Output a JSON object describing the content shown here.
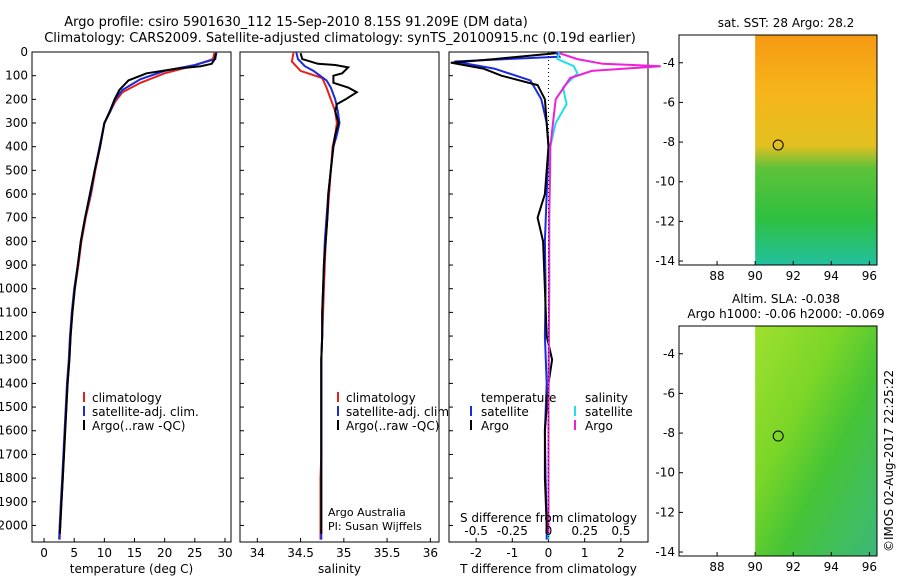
{
  "title": {
    "line1": "Argo profile: csiro 5901630_112 15-Sep-2010 8.15S 91.209E (DM data)",
    "line2": "Climatology: CARS2009. Satellite-adjusted climatology: synTS_20100915.nc (0.19d earlier)"
  },
  "watermark": "©IMOS 02-Aug-2017 22:25:22",
  "colors": {
    "climatology": "#e8201a",
    "satellite": "#1a2bdc",
    "argo": "#000000",
    "sal_satellite": "#1fe0e8",
    "sal_argo": "#ee20d8"
  },
  "chart_data": [
    {
      "type": "line",
      "title": "",
      "xlabel": "temperature (deg C)",
      "ylabel": "",
      "xlim": [
        -2,
        31
      ],
      "ylim": [
        2070,
        0
      ],
      "xticks": [
        "0",
        "5",
        "10",
        "15",
        "20",
        "25",
        "30"
      ],
      "yticks": [
        "0",
        "100",
        "200",
        "300",
        "400",
        "500",
        "600",
        "700",
        "800",
        "900",
        "1000",
        "1100",
        "1200",
        "1300",
        "1400",
        "1500",
        "1600",
        "1700",
        "1800",
        "1900",
        "2000"
      ],
      "legend": [
        "climatology",
        "satellite-adj. clim.",
        "Argo(..raw -QC)"
      ],
      "series": [
        {
          "name": "climatology",
          "points": [
            [
              28.3,
              0
            ],
            [
              28,
              30
            ],
            [
              24.5,
              60
            ],
            [
              20,
              90
            ],
            [
              16,
              130
            ],
            [
              13,
              170
            ],
            [
              11.8,
              210
            ],
            [
              11,
              250
            ],
            [
              10,
              300
            ],
            [
              9.3,
              400
            ],
            [
              8.5,
              500
            ],
            [
              7.8,
              600
            ],
            [
              6.9,
              700
            ],
            [
              6.2,
              800
            ],
            [
              5.7,
              900
            ],
            [
              5.1,
              1000
            ],
            [
              4.7,
              1100
            ],
            [
              4.4,
              1200
            ],
            [
              4.2,
              1300
            ],
            [
              3.9,
              1400
            ],
            [
              3.7,
              1500
            ],
            [
              3.5,
              1600
            ],
            [
              3.3,
              1700
            ],
            [
              3.1,
              1800
            ],
            [
              2.9,
              1900
            ],
            [
              2.7,
              2000
            ],
            [
              2.6,
              2060
            ]
          ]
        },
        {
          "name": "satellite-adj. clim.",
          "points": [
            [
              28.6,
              0
            ],
            [
              28.4,
              30
            ],
            [
              25,
              55
            ],
            [
              20,
              80
            ],
            [
              16,
              115
            ],
            [
              13,
              160
            ],
            [
              11.8,
              200
            ],
            [
              11,
              250
            ],
            [
              10,
              300
            ],
            [
              9.2,
              400
            ],
            [
              8.4,
              500
            ],
            [
              7.7,
              600
            ],
            [
              6.8,
              700
            ],
            [
              6.1,
              800
            ],
            [
              5.6,
              900
            ],
            [
              5.0,
              1000
            ],
            [
              4.6,
              1100
            ],
            [
              4.3,
              1200
            ],
            [
              4.1,
              1300
            ],
            [
              3.8,
              1400
            ],
            [
              3.6,
              1500
            ],
            [
              3.4,
              1600
            ],
            [
              3.2,
              1700
            ],
            [
              3.0,
              1800
            ],
            [
              2.8,
              1900
            ],
            [
              2.6,
              2000
            ],
            [
              2.5,
              2060
            ]
          ]
        },
        {
          "name": "Argo(..raw -QC)",
          "points": [
            [
              28.5,
              5
            ],
            [
              28.3,
              30
            ],
            [
              27.8,
              50
            ],
            [
              26,
              60
            ],
            [
              22,
              70
            ],
            [
              17,
              90
            ],
            [
              14,
              120
            ],
            [
              12.5,
              160
            ],
            [
              11.7,
              200
            ],
            [
              10.9,
              250
            ],
            [
              10,
              300
            ],
            [
              9.3,
              400
            ],
            [
              8.4,
              500
            ],
            [
              7.6,
              600
            ],
            [
              6.8,
              700
            ],
            [
              6.1,
              800
            ],
            [
              5.6,
              900
            ],
            [
              5.1,
              1000
            ],
            [
              4.7,
              1100
            ],
            [
              4.4,
              1200
            ],
            [
              4.2,
              1300
            ],
            [
              3.9,
              1400
            ],
            [
              3.7,
              1500
            ],
            [
              3.5,
              1600
            ],
            [
              3.3,
              1700
            ],
            [
              3.1,
              1800
            ],
            [
              2.9,
              1900
            ],
            [
              2.7,
              2000
            ],
            [
              2.6,
              2035
            ]
          ]
        }
      ]
    },
    {
      "type": "line",
      "xlabel": "salinity",
      "xlim": [
        33.8,
        36.1
      ],
      "ylim": [
        2070,
        0
      ],
      "xticks": [
        "34",
        "34.5",
        "35",
        "35.5",
        "36"
      ],
      "legend": [
        "climatology",
        "satellite-adj. clim.",
        "Argo(..raw -QC)"
      ],
      "annotations": [
        "Argo Australia",
        "PI: Susan Wijffels"
      ],
      "series": [
        {
          "name": "climatology",
          "points": [
            [
              34.42,
              0
            ],
            [
              34.4,
              40
            ],
            [
              34.5,
              80
            ],
            [
              34.75,
              110
            ],
            [
              34.8,
              150
            ],
            [
              34.85,
              200
            ],
            [
              34.9,
              250
            ],
            [
              34.92,
              300
            ],
            [
              34.9,
              350
            ],
            [
              34.87,
              400
            ],
            [
              34.85,
              500
            ],
            [
              34.83,
              600
            ],
            [
              34.81,
              700
            ],
            [
              34.79,
              800
            ],
            [
              34.78,
              900
            ],
            [
              34.77,
              1000
            ],
            [
              34.76,
              1100
            ],
            [
              34.75,
              1200
            ],
            [
              34.74,
              1300
            ],
            [
              34.74,
              1400
            ],
            [
              34.74,
              1500
            ],
            [
              34.74,
              1600
            ],
            [
              34.74,
              1700
            ],
            [
              34.73,
              1800
            ],
            [
              34.73,
              1900
            ],
            [
              34.73,
              2000
            ],
            [
              34.73,
              2060
            ]
          ]
        },
        {
          "name": "satellite-adj. clim.",
          "points": [
            [
              34.45,
              0
            ],
            [
              34.47,
              30
            ],
            [
              34.55,
              60
            ],
            [
              34.65,
              80
            ],
            [
              34.8,
              120
            ],
            [
              34.85,
              150
            ],
            [
              34.9,
              200
            ],
            [
              34.93,
              250
            ],
            [
              34.95,
              300
            ],
            [
              34.92,
              350
            ],
            [
              34.88,
              400
            ],
            [
              34.85,
              500
            ],
            [
              34.82,
              600
            ],
            [
              34.8,
              700
            ],
            [
              34.78,
              800
            ],
            [
              34.77,
              900
            ],
            [
              34.76,
              1000
            ],
            [
              34.75,
              1100
            ],
            [
              34.75,
              1200
            ],
            [
              34.74,
              1300
            ],
            [
              34.74,
              1400
            ],
            [
              34.74,
              1500
            ],
            [
              34.74,
              1600
            ],
            [
              34.74,
              1700
            ],
            [
              34.74,
              1800
            ],
            [
              34.74,
              1900
            ],
            [
              34.74,
              2000
            ],
            [
              34.74,
              2060
            ]
          ]
        },
        {
          "name": "Argo(..raw -QC)",
          "points": [
            [
              34.5,
              5
            ],
            [
              34.52,
              30
            ],
            [
              34.7,
              50
            ],
            [
              34.9,
              55
            ],
            [
              35.05,
              65
            ],
            [
              34.98,
              90
            ],
            [
              34.88,
              100
            ],
            [
              34.88,
              130
            ],
            [
              35.05,
              150
            ],
            [
              35.15,
              170
            ],
            [
              35.02,
              200
            ],
            [
              34.92,
              220
            ],
            [
              34.9,
              250
            ],
            [
              34.94,
              300
            ],
            [
              34.9,
              350
            ],
            [
              34.88,
              400
            ],
            [
              34.85,
              500
            ],
            [
              34.82,
              600
            ],
            [
              34.81,
              700
            ],
            [
              34.79,
              800
            ],
            [
              34.77,
              900
            ],
            [
              34.76,
              1000
            ],
            [
              34.75,
              1100
            ],
            [
              34.75,
              1200
            ],
            [
              34.74,
              1300
            ],
            [
              34.74,
              1400
            ],
            [
              34.74,
              1500
            ],
            [
              34.74,
              1600
            ],
            [
              34.74,
              1700
            ],
            [
              34.74,
              1800
            ],
            [
              34.74,
              1900
            ],
            [
              34.74,
              2000
            ],
            [
              34.74,
              2035
            ]
          ]
        }
      ]
    },
    {
      "type": "line",
      "xlabel": "T difference from climatology",
      "top_xlabel": "S difference from climatology",
      "xlim": [
        -2.75,
        2.75
      ],
      "ylim": [
        2070,
        0
      ],
      "xticks": [
        "-2",
        "-1",
        "0",
        "1",
        "2"
      ],
      "top_xticks": [
        "-0.5",
        "-0.25",
        "0",
        "0.25",
        "0.5"
      ],
      "legend_left": {
        "title": "temperature",
        "items": [
          "satellite",
          "Argo"
        ]
      },
      "legend_right": {
        "title": "salinity",
        "items": [
          "satellite",
          "Argo"
        ]
      },
      "series": [
        {
          "name": "temperature satellite",
          "points": [
            [
              0.2,
              0
            ],
            [
              0.3,
              20
            ],
            [
              -2.6,
              40
            ],
            [
              -1.5,
              70
            ],
            [
              -0.5,
              120
            ],
            [
              -0.2,
              200
            ],
            [
              -0.05,
              300
            ],
            [
              0,
              400
            ],
            [
              -0.05,
              600
            ],
            [
              -0.1,
              800
            ],
            [
              -0.08,
              1000
            ],
            [
              -0.1,
              1200
            ],
            [
              -0.05,
              1400
            ],
            [
              -0.1,
              1600
            ],
            [
              -0.08,
              1800
            ],
            [
              -0.05,
              2000
            ],
            [
              -0.05,
              2060
            ]
          ]
        },
        {
          "name": "temperature Argo",
          "points": [
            [
              0.2,
              5
            ],
            [
              -1.5,
              30
            ],
            [
              -2.7,
              45
            ],
            [
              -1.8,
              70
            ],
            [
              -1.3,
              100
            ],
            [
              -0.3,
              140
            ],
            [
              -0.1,
              200
            ],
            [
              -0.05,
              300
            ],
            [
              0,
              400
            ],
            [
              -0.1,
              600
            ],
            [
              -0.3,
              700
            ],
            [
              -0.15,
              800
            ],
            [
              -0.1,
              1000
            ],
            [
              -0.05,
              1200
            ],
            [
              0.1,
              1300
            ],
            [
              0,
              1400
            ],
            [
              -0.1,
              1600
            ],
            [
              -0.1,
              1800
            ],
            [
              -0.05,
              2000
            ],
            [
              -0.05,
              2035
            ]
          ]
        },
        {
          "name": "salinity satellite",
          "points": [
            [
              0.3,
              0
            ],
            [
              0.25,
              30
            ],
            [
              0.7,
              60
            ],
            [
              0.8,
              90
            ],
            [
              0.4,
              150
            ],
            [
              0.5,
              220
            ],
            [
              0.2,
              300
            ],
            [
              0.05,
              400
            ],
            [
              0.05,
              500
            ],
            [
              0.02,
              700
            ],
            [
              0.02,
              1000
            ],
            [
              0,
              1500
            ],
            [
              0,
              2060
            ]
          ]
        },
        {
          "name": "salinity Argo",
          "points": [
            [
              0.3,
              5
            ],
            [
              0.8,
              30
            ],
            [
              1.5,
              50
            ],
            [
              3.1,
              60
            ],
            [
              1.2,
              80
            ],
            [
              0.6,
              110
            ],
            [
              0.2,
              200
            ],
            [
              0.05,
              400
            ],
            [
              0.02,
              700
            ],
            [
              0.02,
              1000
            ],
            [
              0,
              1500
            ],
            [
              0,
              2035
            ]
          ]
        }
      ]
    },
    {
      "type": "heatmap",
      "title": "sat. SST: 28 Argo: 28.2",
      "xlim": [
        86,
        96.4
      ],
      "ylim": [
        -14.2,
        -2.6
      ],
      "xticks": [
        "88",
        "90",
        "92",
        "94",
        "96"
      ],
      "yticks": [
        "-4",
        "-6",
        "-8",
        "-10",
        "-12",
        "-14"
      ],
      "argo_position": [
        91.209,
        -8.15
      ]
    },
    {
      "type": "heatmap",
      "title": "Altim. SLA: -0.038",
      "subtitle": "Argo h1000: -0.06 h2000: -0.069",
      "xlim": [
        86,
        96.4
      ],
      "ylim": [
        -14.2,
        -2.6
      ],
      "xticks": [
        "88",
        "90",
        "92",
        "94",
        "96"
      ],
      "yticks": [
        "-4",
        "-6",
        "-8",
        "-10",
        "-12",
        "-14"
      ],
      "argo_position": [
        91.209,
        -8.15
      ]
    }
  ]
}
